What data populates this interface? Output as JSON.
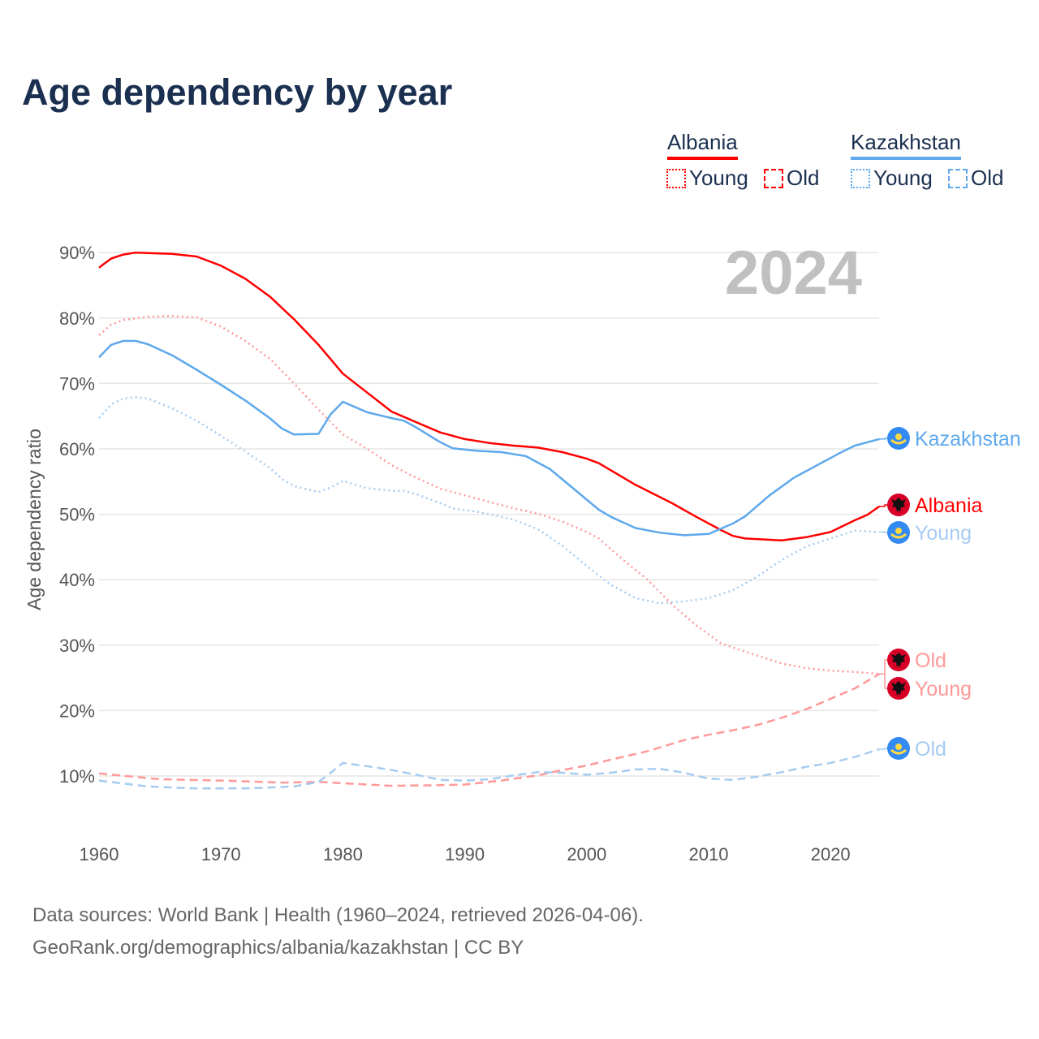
{
  "title": "Age dependency by year",
  "legend": {
    "countries": [
      {
        "name": "Albania",
        "color": "#ff0000",
        "light": "#ff9999",
        "young": "Young",
        "old": "Old"
      },
      {
        "name": "Kazakhstan",
        "color": "#5ea8ec",
        "light": "#a6ccf2",
        "young": "Young",
        "old": "Old"
      }
    ]
  },
  "source": {
    "line1": "Data sources: World Bank | Health (1960–2024, retrieved 2026-04-06).",
    "line2": "GeoRank.org/demographics/albania/kazakhstan | CC BY"
  },
  "chart_data": {
    "type": "line",
    "title": "Age dependency by year",
    "xlabel": "",
    "ylabel": "Age dependency ratio",
    "xlim": [
      1960,
      2024
    ],
    "ylim": [
      0,
      95
    ],
    "xticks": [
      "1960",
      "1970",
      "1980",
      "1990",
      "2000",
      "2010",
      "2020"
    ],
    "yticks": [
      "10%",
      "20%",
      "30%",
      "40%",
      "50%",
      "60%",
      "70%",
      "80%",
      "90%"
    ],
    "year_label": "2024",
    "grid": true,
    "series": [
      {
        "name": "Albania",
        "label": "Albania",
        "style": "solid",
        "color": "#ff0000",
        "flag": "albania",
        "x": [
          1960,
          1961,
          1962,
          1963,
          1966,
          1968,
          1970,
          1972,
          1974,
          1976,
          1978,
          1980,
          1982,
          1984,
          1986,
          1988,
          1990,
          1992,
          1994,
          1996,
          1998,
          2000,
          2001,
          2004,
          2007,
          2009,
          2011,
          2012,
          2013,
          2016,
          2018,
          2020,
          2022,
          2023,
          2024
        ],
        "y": [
          87.7,
          89.1,
          89.7,
          90,
          89.8,
          89.4,
          88,
          86,
          83.3,
          79.8,
          75.9,
          71.5,
          68.6,
          65.7,
          64.1,
          62.5,
          61.5,
          60.9,
          60.5,
          60.2,
          59.5,
          58.5,
          57.8,
          54.5,
          51.7,
          49.6,
          47.6,
          46.7,
          46.3,
          46.0,
          46.5,
          47.3,
          49.1,
          49.9,
          51.2
        ]
      },
      {
        "name": "Albania Young",
        "label": "Young",
        "style": "dotted",
        "color": "#ff9999",
        "flag": "albania",
        "x": [
          1960,
          1961,
          1962,
          1964,
          1966,
          1968,
          1970,
          1972,
          1974,
          1976,
          1978,
          1980,
          1982,
          1984,
          1986,
          1988,
          1990,
          1992,
          1994,
          1996,
          1998,
          2000,
          2001,
          2003,
          2005,
          2007,
          2009,
          2011,
          2013,
          2016,
          2018,
          2020,
          2022,
          2024
        ],
        "y": [
          77.4,
          79,
          79.7,
          80.2,
          80.3,
          80.1,
          78.7,
          76.5,
          73.8,
          70,
          66,
          62.2,
          60,
          57.5,
          55.6,
          53.9,
          52.9,
          51.9,
          50.9,
          50.1,
          48.9,
          47.3,
          46.3,
          43,
          40,
          36.2,
          33,
          30.3,
          29,
          27.2,
          26.5,
          26.1,
          25.9,
          25.6
        ]
      },
      {
        "name": "Albania Old",
        "label": "Old",
        "style": "dashed",
        "color": "#ff9999",
        "flag": "albania",
        "x": [
          1960,
          1965,
          1970,
          1975,
          1978,
          1980,
          1984,
          1988,
          1990,
          1993,
          1996,
          1998,
          2000,
          2002,
          2005,
          2008,
          2010,
          2012,
          2014,
          2016,
          2018,
          2020,
          2022,
          2024
        ],
        "y": [
          10.4,
          9.5,
          9.3,
          9,
          9.1,
          8.9,
          8.5,
          8.6,
          8.7,
          9.3,
          10.1,
          10.9,
          11.6,
          12.5,
          13.8,
          15.5,
          16.3,
          17,
          17.8,
          18.9,
          20.2,
          21.8,
          23.4,
          25.6
        ]
      },
      {
        "name": "Kazakhstan",
        "label": "Kazakhstan",
        "style": "solid",
        "color": "#5ea8ec",
        "flag": "kazakhstan",
        "x": [
          1960,
          1961,
          1962,
          1963,
          1964,
          1966,
          1968,
          1970,
          1972,
          1974,
          1975,
          1976,
          1978,
          1979,
          1980,
          1982,
          1984,
          1985,
          1986,
          1988,
          1989,
          1991,
          1993,
          1995,
          1997,
          1999,
          2001,
          2002,
          2004,
          2006,
          2008,
          2010,
          2012,
          2013,
          2015,
          2017,
          2019,
          2021,
          2022,
          2024
        ],
        "y": [
          74,
          75.9,
          76.5,
          76.5,
          76,
          74.3,
          72.1,
          69.8,
          67.4,
          64.7,
          63.1,
          62.2,
          62.3,
          65.3,
          67.2,
          65.6,
          64.7,
          64.3,
          63.3,
          61,
          60.1,
          59.7,
          59.5,
          58.9,
          56.9,
          53.8,
          50.7,
          49.6,
          47.9,
          47.2,
          46.8,
          47,
          48.6,
          49.7,
          52.9,
          55.6,
          57.6,
          59.6,
          60.5,
          61.5
        ]
      },
      {
        "name": "Kazakhstan Young",
        "label": "Young",
        "style": "dotted",
        "color": "#a6ccf2",
        "flag": "kazakhstan",
        "x": [
          1960,
          1961,
          1962,
          1963,
          1964,
          1966,
          1968,
          1970,
          1972,
          1974,
          1975,
          1976,
          1978,
          1979,
          1980,
          1982,
          1984,
          1985,
          1986,
          1988,
          1989,
          1991,
          1994,
          1996,
          1998,
          2000,
          2002,
          2004,
          2006,
          2008,
          2010,
          2012,
          2014,
          2016,
          2018,
          2020,
          2022,
          2024
        ],
        "y": [
          64.7,
          66.8,
          67.7,
          67.9,
          67.7,
          66.2,
          64.3,
          62,
          59.6,
          57.1,
          55.4,
          54.3,
          53.4,
          54.1,
          55.1,
          54,
          53.6,
          53.6,
          53.1,
          51.7,
          50.9,
          50.4,
          49.2,
          47.7,
          45.2,
          42.1,
          39.2,
          37.2,
          36.4,
          36.7,
          37.2,
          38.4,
          40.5,
          43,
          45.1,
          46.3,
          47.5,
          47.3
        ]
      },
      {
        "name": "Kazakhstan Old",
        "label": "Old",
        "style": "dashed",
        "color": "#a6ccf2",
        "flag": "kazakhstan",
        "x": [
          1960,
          1964,
          1968,
          1972,
          1976,
          1978,
          1979,
          1980,
          1982,
          1984,
          1986,
          1988,
          1990,
          1992,
          1994,
          1996,
          1998,
          2000,
          2002,
          2004,
          2006,
          2008,
          2010,
          2012,
          2014,
          2016,
          2018,
          2020,
          2022,
          2024
        ],
        "y": [
          9.3,
          8.4,
          8.1,
          8.1,
          8.4,
          9.1,
          10.5,
          12,
          11.5,
          10.9,
          10.2,
          9.4,
          9.3,
          9.5,
          10.1,
          10.6,
          10.5,
          10.2,
          10.5,
          11,
          11.1,
          10.5,
          9.6,
          9.4,
          9.9,
          10.6,
          11.4,
          12,
          12.9,
          14.1
        ]
      }
    ]
  }
}
